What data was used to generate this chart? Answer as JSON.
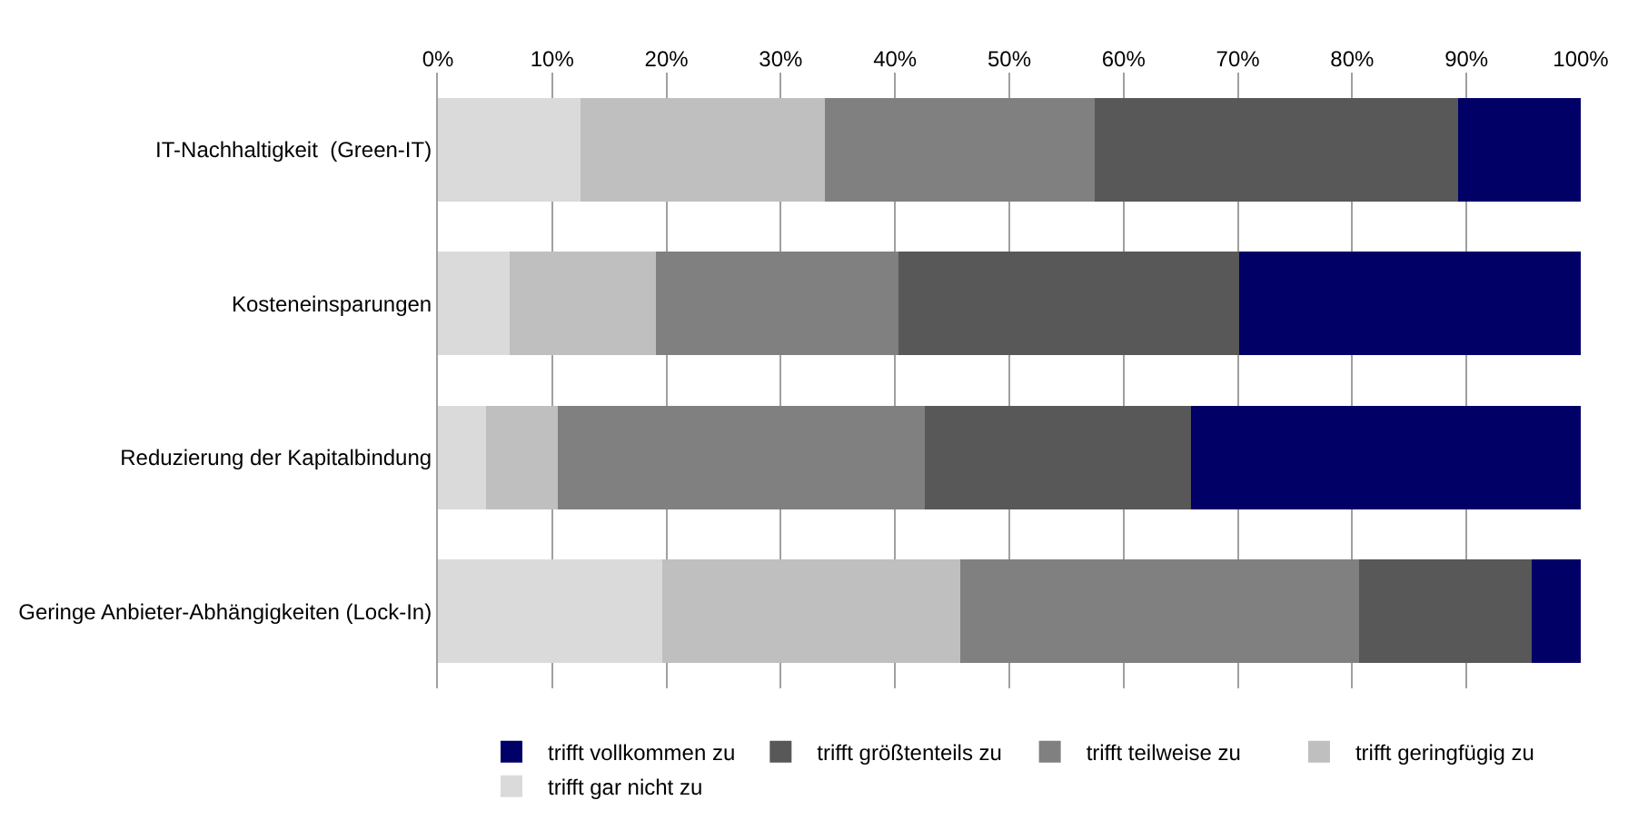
{
  "chart_data": {
    "type": "bar",
    "orientation": "horizontal",
    "stacked": true,
    "categories": [
      "IT-Nachhaltigkeit  (Green-IT)",
      "Kosteneinsparungen",
      "Reduzierung der Kapitalbindung",
      "Geringe Anbieter-Abhängigkeiten (Lock-In)"
    ],
    "series": [
      {
        "name": "trifft gar nicht zu",
        "color": "#dadada",
        "values": [
          12.5,
          6.3,
          4.2,
          19.6
        ]
      },
      {
        "name": "trifft geringfügig zu",
        "color": "#bfbfbf",
        "values": [
          21.4,
          12.8,
          6.3,
          26.1
        ]
      },
      {
        "name": "trifft teilweise zu",
        "color": "#808080",
        "values": [
          23.6,
          21.2,
          32.1,
          34.9
        ]
      },
      {
        "name": "trifft größtenteils zu",
        "color": "#585858",
        "values": [
          31.8,
          29.8,
          23.3,
          15.1
        ]
      },
      {
        "name": "trifft vollkommen zu",
        "color": "#000066",
        "values": [
          10.7,
          29.9,
          34.1,
          4.3
        ]
      }
    ],
    "xlim": [
      0,
      100
    ],
    "xticks": [
      {
        "value": 0,
        "label": "0%"
      },
      {
        "value": 10,
        "label": "10%"
      },
      {
        "value": 20,
        "label": "20%"
      },
      {
        "value": 30,
        "label": "30%"
      },
      {
        "value": 40,
        "label": "40%"
      },
      {
        "value": 50,
        "label": "50%"
      },
      {
        "value": 60,
        "label": "60%"
      },
      {
        "value": 70,
        "label": "70%"
      },
      {
        "value": 80,
        "label": "80%"
      },
      {
        "value": 90,
        "label": "90%"
      },
      {
        "value": 100,
        "label": "100%"
      }
    ],
    "grid": "x",
    "legend": "bottom"
  }
}
